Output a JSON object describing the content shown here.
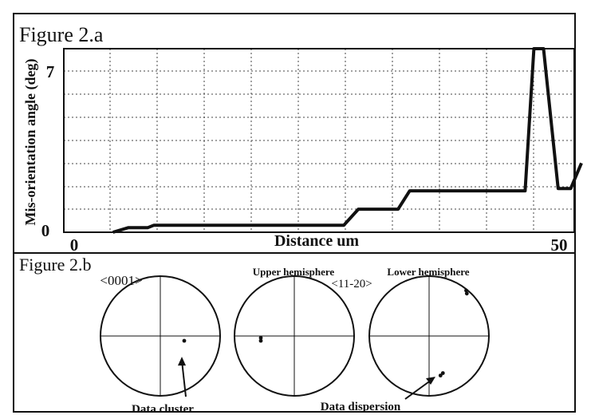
{
  "figure_a": {
    "title": "Figure 2.a"
  },
  "figure_b": {
    "title": "Figure 2.b",
    "label_0001": "<0001>",
    "label_upper": "Upper hemisphere",
    "label_11_20": "<11-20>",
    "label_lower": "Lower hemisphere",
    "annotation_cluster": "Data cluster",
    "annotation_dispersion": "Data dispersion"
  },
  "chart_data": [
    {
      "type": "line",
      "title": "Figure 2.a",
      "xlabel": "Distance um",
      "ylabel": "Mis-orientation angle (deg)",
      "xlim": [
        0,
        50
      ],
      "ylim": [
        0,
        7
      ],
      "x_ticks": [
        "0",
        "50"
      ],
      "y_ticks": [
        "0",
        "7"
      ],
      "grid": true,
      "series": [
        {
          "points": [
            [
              4,
              -0.6
            ],
            [
              5.6,
              0.2
            ],
            [
              6.3,
              0.2
            ],
            [
              7.6,
              0.2
            ],
            [
              8.2,
              0.3
            ],
            [
              10.5,
              0.3
            ],
            [
              20,
              0.3
            ],
            [
              27.8,
              0.3
            ],
            [
              29.3,
              1.0
            ],
            [
              33.4,
              1.0
            ],
            [
              34.6,
              1.8
            ],
            [
              45,
              1.8
            ],
            [
              46.5,
              1.8
            ],
            [
              47.4,
              8.6
            ],
            [
              48.4,
              8.6
            ],
            [
              49.9,
              1.9
            ],
            [
              51.2,
              1.9
            ],
            [
              52.3,
              3.0
            ]
          ]
        }
      ]
    },
    {
      "type": "scatter",
      "subtype": "pole figures",
      "title": "Figure 2.b",
      "plots": [
        {
          "label": "<0001>",
          "points": [
            [
              0.4,
              -0.08
            ]
          ]
        },
        {
          "label": "<11-20> Upper hemisphere",
          "points": [
            [
              -0.56,
              -0.03
            ],
            [
              -0.56,
              -0.08
            ]
          ]
        },
        {
          "label": "<11-20> Lower hemisphere",
          "points": [
            [
              0.62,
              0.76
            ],
            [
              0.63,
              0.71
            ],
            [
              0.23,
              -0.62
            ],
            [
              0.19,
              -0.66
            ]
          ]
        }
      ]
    }
  ]
}
